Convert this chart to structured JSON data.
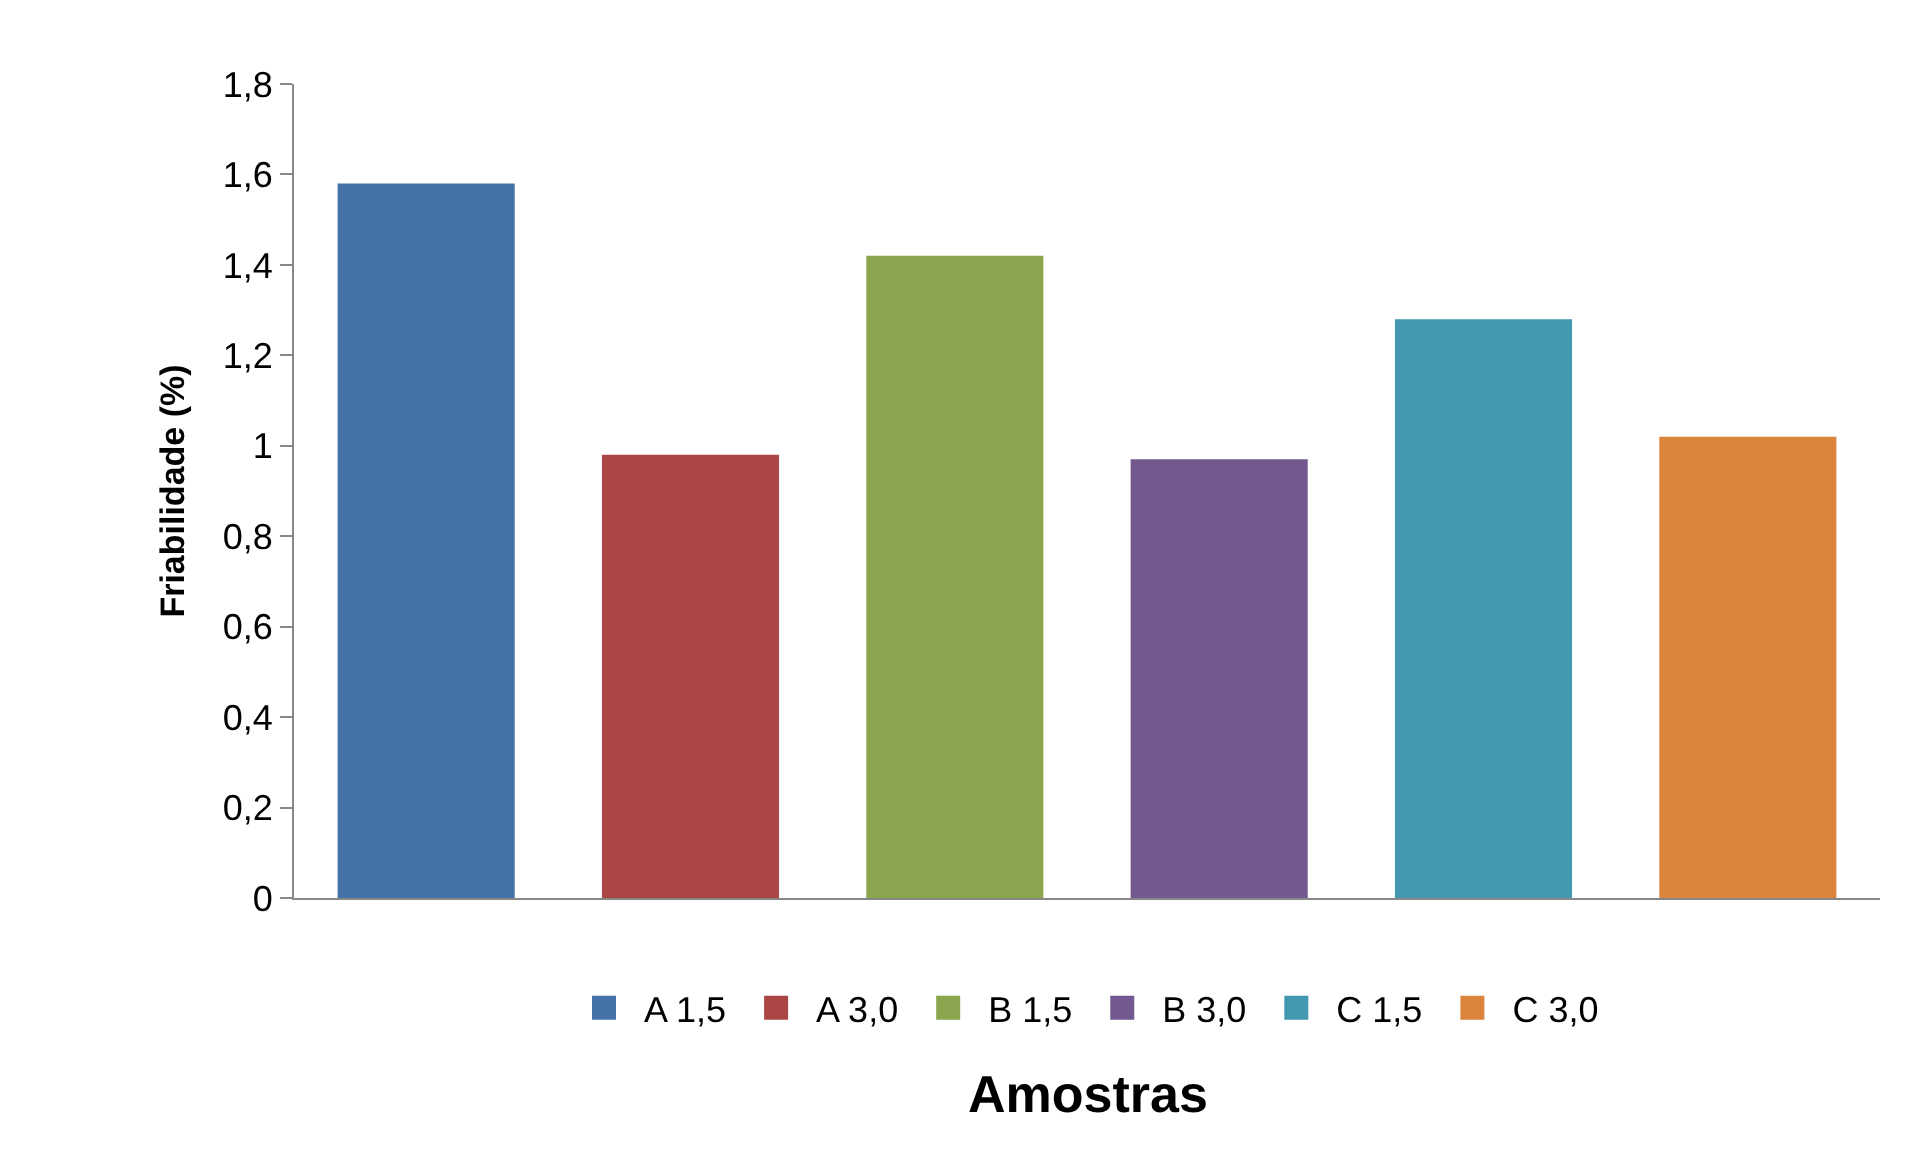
{
  "chart_data": {
    "type": "bar",
    "xlabel": "Amostras",
    "ylabel": "Friabilidade (%)",
    "categories": [
      null,
      null,
      null,
      null,
      null,
      null
    ],
    "series": [
      {
        "name": "A 1,5",
        "color": "#4572a7",
        "values": [
          1.58,
          null,
          null,
          null,
          null,
          null
        ]
      },
      {
        "name": "A 3,0",
        "color": "#aa4643",
        "values": [
          null,
          0.98,
          null,
          null,
          null,
          null
        ]
      },
      {
        "name": "B 1,5",
        "color": "#89a54e",
        "values": [
          null,
          null,
          1.42,
          null,
          null,
          null
        ]
      },
      {
        "name": "B 3,0",
        "color": "#71588f",
        "values": [
          null,
          null,
          null,
          0.97,
          null,
          null
        ]
      },
      {
        "name": "C 1,5",
        "color": "#4198af",
        "values": [
          null,
          null,
          null,
          null,
          1.28,
          null
        ]
      },
      {
        "name": "C 3,0",
        "color": "#db843d",
        "values": [
          null,
          null,
          null,
          null,
          null,
          1.02
        ]
      }
    ],
    "ylim": [
      0,
      1.8
    ],
    "yticks": [
      0,
      {
        "value": 0.2,
        "label": "0,2"
      },
      {
        "value": 0.4,
        "label": "0,4"
      },
      {
        "value": 0.6,
        "label": "0,6"
      },
      {
        "value": 0.8,
        "label": "0,8"
      },
      1,
      {
        "value": 1.2,
        "label": "1,2"
      },
      {
        "value": 1.4,
        "label": "1,4"
      },
      {
        "value": 1.6,
        "label": "1,6"
      },
      {
        "value": 1.8,
        "label": "1,8"
      }
    ],
    "grid": false,
    "legend": "bottom",
    "tick_labels": "y"
  }
}
